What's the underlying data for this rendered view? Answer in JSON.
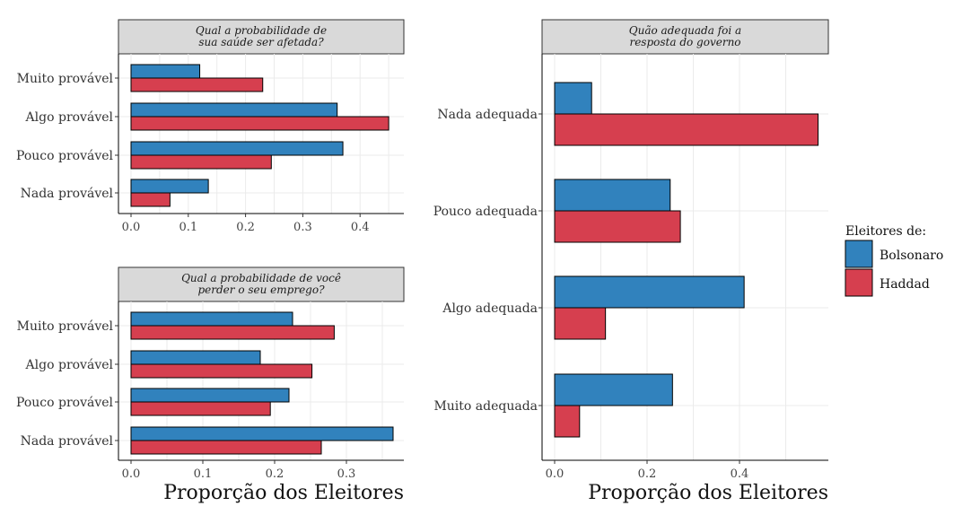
{
  "colors": {
    "bolsonaro": "#3182bd",
    "haddad": "#d63f4f",
    "strip": "#d9d9d9",
    "grid": "#ebebeb"
  },
  "legend": {
    "title": "Eleitores de:",
    "items": [
      {
        "label": "Bolsonaro",
        "color": "#3182bd"
      },
      {
        "label": "Haddad",
        "color": "#d63f4f"
      }
    ]
  },
  "chart_data": [
    {
      "type": "bar",
      "orientation": "horizontal",
      "title": "Qual a probabilidade de sua saúde ser afetada?",
      "title_lines": [
        "Qual a probabilidade de",
        "sua saúde ser afetada?"
      ],
      "categories": [
        "Muito provável",
        "Algo provável",
        "Pouco provável",
        "Nada provável"
      ],
      "series": [
        {
          "name": "Bolsonaro",
          "values": [
            0.12,
            0.36,
            0.37,
            0.135
          ]
        },
        {
          "name": "Haddad",
          "values": [
            0.23,
            0.45,
            0.245,
            0.068
          ]
        }
      ],
      "xlim": [
        0,
        0.47
      ],
      "xticks": [
        0.0,
        0.1,
        0.2,
        0.3,
        0.4
      ],
      "xtick_labels": [
        "0.0",
        "0.1",
        "0.2",
        "0.3",
        "0.4"
      ],
      "xlabel": ""
    },
    {
      "type": "bar",
      "orientation": "horizontal",
      "title": "Qual a probabilidade de você perder o seu emprego?",
      "title_lines": [
        "Qual a probabilidade de você",
        "perder o seu emprego?"
      ],
      "categories": [
        "Muito provável",
        "Algo provável",
        "Pouco provável",
        "Nada provável"
      ],
      "series": [
        {
          "name": "Bolsonaro",
          "values": [
            0.225,
            0.18,
            0.22,
            0.365
          ]
        },
        {
          "name": "Haddad",
          "values": [
            0.283,
            0.252,
            0.194,
            0.265
          ]
        }
      ],
      "xlim": [
        0,
        0.385
      ],
      "xticks": [
        0.0,
        0.1,
        0.2,
        0.3
      ],
      "xtick_labels": [
        "0.0",
        "0.1",
        "0.2",
        "0.3"
      ],
      "xlabel": "Proporção dos Eleitores"
    },
    {
      "type": "bar",
      "orientation": "horizontal",
      "title": "Quão adequada foi a resposta do governo",
      "title_lines": [
        "Quão adequada foi a",
        "resposta do governo"
      ],
      "categories": [
        "Nada adequada",
        "Pouco adequada",
        "Algo adequada",
        "Muito adequada"
      ],
      "series": [
        {
          "name": "Bolsonaro",
          "values": [
            0.08,
            0.25,
            0.41,
            0.255
          ]
        },
        {
          "name": "Haddad",
          "values": [
            0.57,
            0.272,
            0.11,
            0.054
          ]
        }
      ],
      "xlim": [
        0,
        0.595
      ],
      "xticks": [
        0.0,
        0.2,
        0.4
      ],
      "xtick_labels": [
        "0.0",
        "0.2",
        "0.4"
      ],
      "xlabel": "Proporção dos Eleitores"
    }
  ]
}
